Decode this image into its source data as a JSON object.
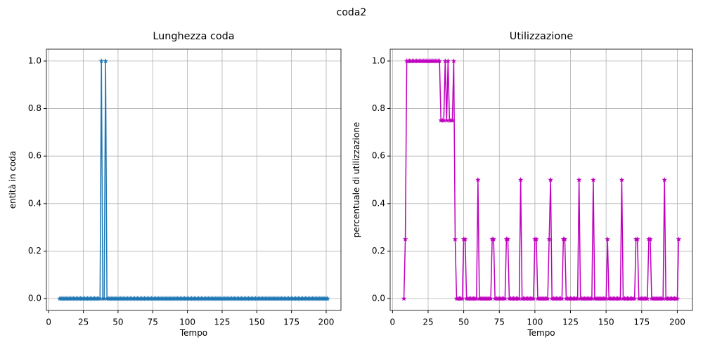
{
  "title": "coda2",
  "chart_data": [
    {
      "type": "line",
      "title": "Lunghezza coda",
      "xlabel": "Tempo",
      "ylabel": "entità in coda",
      "marker": "star",
      "grid": true,
      "xlim": [
        -1.65,
        210.65
      ],
      "xticks": [
        0,
        25,
        50,
        75,
        100,
        125,
        150,
        175,
        200
      ],
      "ylim": [
        -0.05,
        1.05
      ],
      "yticks": [
        {
          "value": 0,
          "label": "0.0"
        },
        0.2,
        0.4,
        0.6,
        0.8,
        {
          "value": 1,
          "label": "1.0"
        }
      ],
      "x": [
        8,
        9,
        10,
        11,
        12,
        13,
        14,
        15,
        16,
        17,
        18,
        19,
        20,
        21,
        22,
        23,
        24,
        25,
        26,
        27,
        28,
        29,
        30,
        31,
        32,
        33,
        34,
        35,
        36,
        37,
        38,
        39,
        40,
        41,
        42,
        43,
        44,
        45,
        46,
        47,
        48,
        49,
        50,
        51,
        52,
        53,
        54,
        55,
        56,
        57,
        58,
        59,
        60,
        61,
        62,
        63,
        64,
        65,
        66,
        67,
        68,
        69,
        70,
        71,
        72,
        73,
        74,
        75,
        76,
        77,
        78,
        79,
        80,
        81,
        82,
        83,
        84,
        85,
        86,
        87,
        88,
        89,
        90,
        91,
        92,
        93,
        94,
        95,
        96,
        97,
        98,
        99,
        100,
        101,
        102,
        103,
        104,
        105,
        106,
        107,
        108,
        109,
        110,
        111,
        112,
        113,
        114,
        115,
        116,
        117,
        118,
        119,
        120,
        121,
        122,
        123,
        124,
        125,
        126,
        127,
        128,
        129,
        130,
        131,
        132,
        133,
        134,
        135,
        136,
        137,
        138,
        139,
        140,
        141,
        142,
        143,
        144,
        145,
        146,
        147,
        148,
        149,
        150,
        151,
        152,
        153,
        154,
        155,
        156,
        157,
        158,
        159,
        160,
        161,
        162,
        163,
        164,
        165,
        166,
        167,
        168,
        169,
        170,
        171,
        172,
        173,
        174,
        175,
        176,
        177,
        178,
        179,
        180,
        181,
        182,
        183,
        184,
        185,
        186,
        187,
        188,
        189,
        190,
        191,
        192,
        193,
        194,
        195,
        196,
        197,
        198,
        199,
        200,
        201
      ],
      "series": [
        {
          "color": "#1f77b4",
          "values": [
            0,
            0,
            0,
            0,
            0,
            0,
            0,
            0,
            0,
            0,
            0,
            0,
            0,
            0,
            0,
            0,
            0,
            0,
            0,
            0,
            0,
            0,
            0,
            0,
            0,
            0,
            0,
            0,
            0,
            0,
            1,
            0,
            0,
            1,
            0,
            0,
            0,
            0,
            0,
            0,
            0,
            0,
            0,
            0,
            0,
            0,
            0,
            0,
            0,
            0,
            0,
            0,
            0,
            0,
            0,
            0,
            0,
            0,
            0,
            0,
            0,
            0,
            0,
            0,
            0,
            0,
            0,
            0,
            0,
            0,
            0,
            0,
            0,
            0,
            0,
            0,
            0,
            0,
            0,
            0,
            0,
            0,
            0,
            0,
            0,
            0,
            0,
            0,
            0,
            0,
            0,
            0,
            0,
            0,
            0,
            0,
            0,
            0,
            0,
            0,
            0,
            0,
            0,
            0,
            0,
            0,
            0,
            0,
            0,
            0,
            0,
            0,
            0,
            0,
            0,
            0,
            0,
            0,
            0,
            0,
            0,
            0,
            0,
            0,
            0,
            0,
            0,
            0,
            0,
            0,
            0,
            0,
            0,
            0,
            0,
            0,
            0,
            0,
            0,
            0,
            0,
            0,
            0,
            0,
            0,
            0,
            0,
            0,
            0,
            0,
            0,
            0,
            0,
            0,
            0,
            0,
            0,
            0,
            0,
            0,
            0,
            0,
            0,
            0,
            0,
            0,
            0,
            0,
            0,
            0,
            0,
            0,
            0,
            0,
            0,
            0,
            0,
            0,
            0,
            0,
            0,
            0,
            0,
            0,
            0,
            0,
            0,
            0,
            0,
            0,
            0,
            0,
            0,
            0
          ]
        }
      ]
    },
    {
      "type": "line",
      "title": "Utilizzazione",
      "xlabel": "Tempo",
      "ylabel": "percentuale di utilizzazione",
      "marker": "star",
      "grid": true,
      "xlim": [
        -1.65,
        210.65
      ],
      "xticks": [
        0,
        25,
        50,
        75,
        100,
        125,
        150,
        175,
        200
      ],
      "ylim": [
        -0.05,
        1.05
      ],
      "yticks": [
        {
          "value": 0,
          "label": "0.0"
        },
        0.2,
        0.4,
        0.6,
        0.8,
        {
          "value": 1,
          "label": "1.0"
        }
      ],
      "x": [
        8,
        9,
        10,
        11,
        12,
        13,
        14,
        15,
        16,
        17,
        18,
        19,
        20,
        21,
        22,
        23,
        24,
        25,
        26,
        27,
        28,
        29,
        30,
        31,
        32,
        33,
        34,
        35,
        36,
        37,
        38,
        39,
        40,
        41,
        42,
        43,
        44,
        45,
        46,
        47,
        48,
        49,
        50,
        51,
        52,
        53,
        54,
        55,
        56,
        57,
        58,
        59,
        60,
        61,
        62,
        63,
        64,
        65,
        66,
        67,
        68,
        69,
        70,
        71,
        72,
        73,
        74,
        75,
        76,
        77,
        78,
        79,
        80,
        81,
        82,
        83,
        84,
        85,
        86,
        87,
        88,
        89,
        90,
        91,
        92,
        93,
        94,
        95,
        96,
        97,
        98,
        99,
        100,
        101,
        102,
        103,
        104,
        105,
        106,
        107,
        108,
        109,
        110,
        111,
        112,
        113,
        114,
        115,
        116,
        117,
        118,
        119,
        120,
        121,
        122,
        123,
        124,
        125,
        126,
        127,
        128,
        129,
        130,
        131,
        132,
        133,
        134,
        135,
        136,
        137,
        138,
        139,
        140,
        141,
        142,
        143,
        144,
        145,
        146,
        147,
        148,
        149,
        150,
        151,
        152,
        153,
        154,
        155,
        156,
        157,
        158,
        159,
        160,
        161,
        162,
        163,
        164,
        165,
        166,
        167,
        168,
        169,
        170,
        171,
        172,
        173,
        174,
        175,
        176,
        177,
        178,
        179,
        180,
        181,
        182,
        183,
        184,
        185,
        186,
        187,
        188,
        189,
        190,
        191,
        192,
        193,
        194,
        195,
        196,
        197,
        198,
        199,
        200,
        201
      ],
      "series": [
        {
          "color": "#bf00bf",
          "values": [
            0,
            0.25,
            1,
            1,
            1,
            1,
            1,
            1,
            1,
            1,
            1,
            1,
            1,
            1,
            1,
            1,
            1,
            1,
            1,
            1,
            1,
            1,
            1,
            1,
            1,
            1,
            0.75,
            0.75,
            0.75,
            1,
            0.75,
            1,
            0.75,
            0.75,
            0.75,
            1,
            0.25,
            0,
            0,
            0,
            0,
            0,
            0.25,
            0.25,
            0,
            0,
            0,
            0,
            0,
            0,
            0,
            0,
            0.5,
            0,
            0,
            0,
            0,
            0,
            0,
            0,
            0,
            0,
            0.25,
            0.25,
            0,
            0,
            0,
            0,
            0,
            0,
            0,
            0,
            0.25,
            0.25,
            0,
            0,
            0,
            0,
            0,
            0,
            0,
            0,
            0.5,
            0,
            0,
            0,
            0,
            0,
            0,
            0,
            0,
            0,
            0.25,
            0.25,
            0,
            0,
            0,
            0,
            0,
            0,
            0,
            0,
            0.25,
            0.5,
            0,
            0,
            0,
            0,
            0,
            0,
            0,
            0,
            0.25,
            0.25,
            0,
            0,
            0,
            0,
            0,
            0,
            0,
            0,
            0,
            0.5,
            0,
            0,
            0,
            0,
            0,
            0,
            0,
            0,
            0,
            0.5,
            0,
            0,
            0,
            0,
            0,
            0,
            0,
            0,
            0,
            0.25,
            0,
            0,
            0,
            0,
            0,
            0,
            0,
            0,
            0,
            0.5,
            0,
            0,
            0,
            0,
            0,
            0,
            0,
            0,
            0,
            0.25,
            0.25,
            0,
            0,
            0,
            0,
            0,
            0,
            0,
            0.25,
            0.25,
            0,
            0,
            0,
            0,
            0,
            0,
            0,
            0,
            0,
            0.5,
            0,
            0,
            0,
            0,
            0,
            0,
            0,
            0,
            0,
            0.25
          ]
        }
      ]
    }
  ]
}
